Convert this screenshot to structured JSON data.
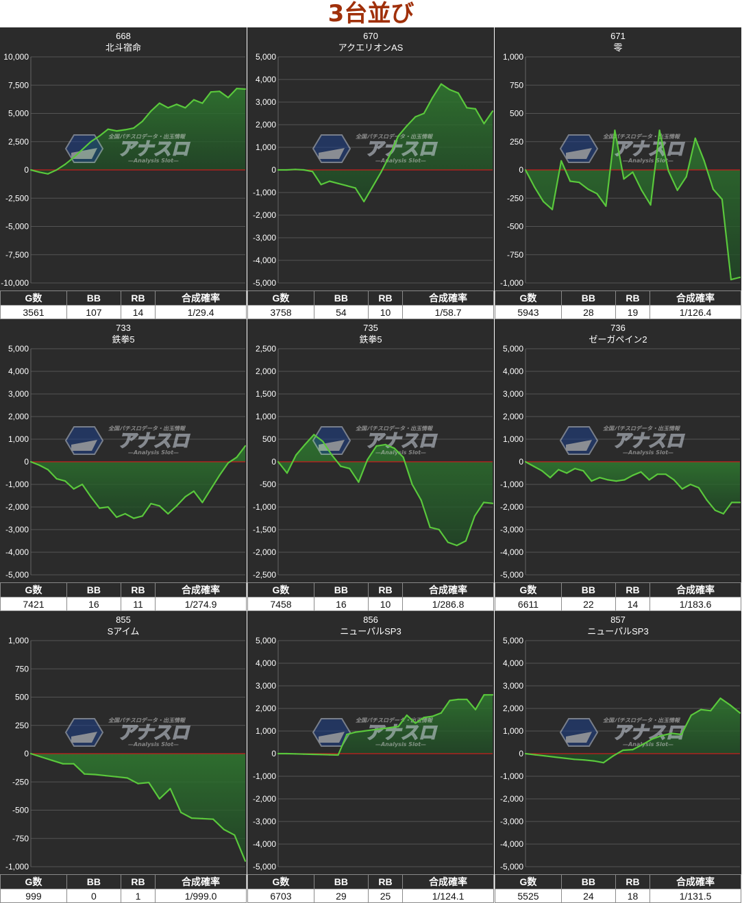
{
  "page_title": "3台並び",
  "table_headers": [
    "G数",
    "BB",
    "RB",
    "合成確率"
  ],
  "colors": {
    "background": "#2b2b2b",
    "line": "#5ac83c",
    "zero_line": "#c81e1e",
    "title": "#a0300a"
  },
  "watermark": {
    "logo_text": "アナスロ",
    "tagline": "全国パチスロデータ・出玉情報",
    "subtitle": "—Analysis Slot—"
  },
  "chart_data": [
    {
      "type": "area",
      "number": "668",
      "model": "北斗宿命",
      "ylim": [
        -10000,
        10000
      ],
      "y_ticks": [
        "10,000",
        "7,500",
        "5,000",
        "2,500",
        "0",
        "-2,500",
        "-5,000",
        "-7,500",
        "-10,000"
      ],
      "values": [
        0,
        -200,
        -350,
        0,
        500,
        1100,
        1800,
        2500,
        3000,
        3600,
        3450,
        3550,
        3700,
        4300,
        5200,
        5900,
        5500,
        5800,
        5500,
        6200,
        5900,
        6900,
        6950,
        6400,
        7200,
        7150
      ],
      "stats": {
        "games": "3561",
        "bb": "107",
        "rb": "14",
        "prob": "1/29.4"
      }
    },
    {
      "type": "area",
      "number": "670",
      "model": "アクエリオンAS",
      "ylim": [
        -5000,
        5000
      ],
      "y_ticks": [
        "5,000",
        "4,000",
        "3,000",
        "2,000",
        "1,000",
        "0",
        "-1,000",
        "-2,000",
        "-3,000",
        "-4,000",
        "-5,000"
      ],
      "values": [
        0,
        0,
        20,
        0,
        -70,
        -650,
        -500,
        -600,
        -700,
        -800,
        -1400,
        -750,
        -100,
        650,
        1500,
        1950,
        2350,
        2500,
        3200,
        3800,
        3550,
        3400,
        2750,
        2700,
        2050,
        2600
      ],
      "stats": {
        "games": "3758",
        "bb": "54",
        "rb": "10",
        "prob": "1/58.7"
      }
    },
    {
      "type": "area",
      "number": "671",
      "model": "零",
      "ylim": [
        -1000,
        1000
      ],
      "y_ticks": [
        "1,000",
        "750",
        "500",
        "250",
        "0",
        "-250",
        "-500",
        "-750",
        "-1,000"
      ],
      "values": [
        0,
        -150,
        -280,
        -350,
        80,
        -100,
        -110,
        -170,
        -210,
        -320,
        350,
        -80,
        -20,
        -180,
        -310,
        350,
        -10,
        -180,
        -60,
        280,
        80,
        -170,
        -260,
        -970,
        -950
      ],
      "stats": {
        "games": "5943",
        "bb": "28",
        "rb": "19",
        "prob": "1/126.4"
      }
    },
    {
      "type": "area",
      "number": "733",
      "model": "鉄拳5",
      "ylim": [
        -5000,
        5000
      ],
      "y_ticks": [
        "5,000",
        "4,000",
        "3,000",
        "2,000",
        "1,000",
        "0",
        "-1,000",
        "-2,000",
        "-3,000",
        "-4,000",
        "-5,000"
      ],
      "values": [
        0,
        -150,
        -350,
        -750,
        -850,
        -1200,
        -1000,
        -1550,
        -2050,
        -2000,
        -2450,
        -2300,
        -2500,
        -2400,
        -1850,
        -1950,
        -2300,
        -1950,
        -1550,
        -1300,
        -1800,
        -1200,
        -600,
        -50,
        200,
        700
      ],
      "stats": {
        "games": "7421",
        "bb": "16",
        "rb": "11",
        "prob": "1/274.9"
      }
    },
    {
      "type": "area",
      "number": "735",
      "model": "鉄拳5",
      "ylim": [
        -2500,
        2500
      ],
      "y_ticks": [
        "2,500",
        "2,000",
        "1,500",
        "1,000",
        "500",
        "0",
        "-500",
        "-1,000",
        "-1,500",
        "-2,000",
        "-2,500"
      ],
      "values": [
        0,
        -250,
        150,
        380,
        600,
        450,
        150,
        -100,
        -150,
        -450,
        50,
        350,
        380,
        300,
        100,
        -500,
        -850,
        -1450,
        -1500,
        -1780,
        -1850,
        -1750,
        -1200,
        -900,
        -920
      ],
      "stats": {
        "games": "7458",
        "bb": "16",
        "rb": "10",
        "prob": "1/286.8"
      }
    },
    {
      "type": "area",
      "number": "736",
      "model": "ゼーガペイン2",
      "ylim": [
        -5000,
        5000
      ],
      "y_ticks": [
        "5,000",
        "4,000",
        "3,000",
        "2,000",
        "1,000",
        "0",
        "-1,000",
        "-2,000",
        "-3,000",
        "-4,000",
        "-5,000"
      ],
      "values": [
        0,
        -200,
        -400,
        -700,
        -350,
        -500,
        -300,
        -400,
        -850,
        -700,
        -800,
        -850,
        -800,
        -600,
        -450,
        -800,
        -550,
        -550,
        -800,
        -1200,
        -1000,
        -1150,
        -1700,
        -2150,
        -2300,
        -1800,
        -1800
      ],
      "stats": {
        "games": "6611",
        "bb": "22",
        "rb": "14",
        "prob": "1/183.6"
      }
    },
    {
      "type": "area",
      "number": "855",
      "model": "Sアイム",
      "ylim": [
        -1000,
        1000
      ],
      "y_ticks": [
        "1,000",
        "750",
        "500",
        "250",
        "0",
        "-250",
        "-500",
        "-750",
        "-1,000"
      ],
      "values": [
        0,
        -30,
        -60,
        -90,
        -90,
        -180,
        -185,
        -195,
        -205,
        -215,
        -265,
        -255,
        -400,
        -310,
        -520,
        -570,
        -575,
        -580,
        -670,
        -720,
        -950
      ],
      "stats": {
        "games": "999",
        "bb": "0",
        "rb": "1",
        "prob": "1/999.0"
      }
    },
    {
      "type": "area",
      "number": "856",
      "model": "ニューパルSP3",
      "ylim": [
        -5000,
        5000
      ],
      "y_ticks": [
        "5,000",
        "4,000",
        "3,000",
        "2,000",
        "1,000",
        "0",
        "-1,000",
        "-2,000",
        "-3,000",
        "-4,000",
        "-5,000"
      ],
      "values": [
        0,
        0,
        -10,
        -20,
        -30,
        -40,
        -50,
        -60,
        850,
        950,
        1000,
        1050,
        1100,
        1150,
        1200,
        1700,
        1350,
        1600,
        1650,
        1800,
        2350,
        2400,
        2400,
        1950,
        2600,
        2600
      ],
      "stats": {
        "games": "6703",
        "bb": "29",
        "rb": "25",
        "prob": "1/124.1"
      }
    },
    {
      "type": "area",
      "number": "857",
      "model": "ニューパルSP3",
      "ylim": [
        -5000,
        5000
      ],
      "y_ticks": [
        "5,000",
        "4,000",
        "3,000",
        "2,000",
        "1,000",
        "0",
        "-1,000",
        "-2,000",
        "-3,000",
        "-4,000",
        "-5,000"
      ],
      "values": [
        0,
        -50,
        -100,
        -150,
        -200,
        -250,
        -280,
        -320,
        -400,
        -100,
        150,
        180,
        400,
        650,
        800,
        900,
        850,
        1700,
        1950,
        1900,
        2450,
        2150,
        1800
      ],
      "stats": {
        "games": "5525",
        "bb": "24",
        "rb": "18",
        "prob": "1/131.5"
      }
    }
  ]
}
